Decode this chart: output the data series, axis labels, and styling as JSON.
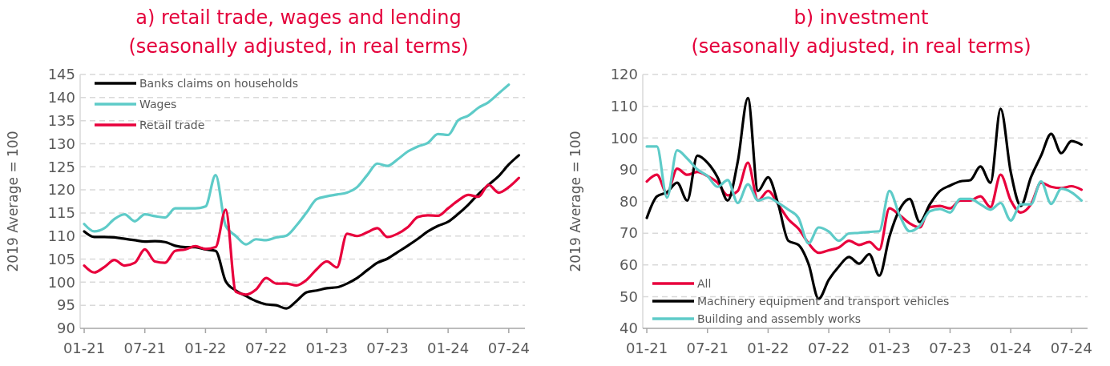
{
  "chart_data": [
    {
      "type": "line",
      "title": "a) retail trade, wages and lending",
      "subtitle": "(seasonally adjusted, in real terms)",
      "ylabel": "2019 Average = 100",
      "categories": [
        "01-21",
        null,
        null,
        null,
        null,
        null,
        "07-21",
        null,
        null,
        null,
        null,
        null,
        "01-22",
        null,
        null,
        null,
        null,
        null,
        "07-22",
        null,
        null,
        null,
        null,
        null,
        "01-23",
        null,
        null,
        null,
        null,
        null,
        "07-23",
        null,
        null,
        null,
        null,
        null,
        "01-24",
        null,
        null,
        null,
        null,
        null,
        "07-24",
        null
      ],
      "ylim": [
        90,
        145
      ],
      "yticks": [
        90,
        95,
        100,
        105,
        110,
        115,
        120,
        125,
        130,
        135,
        140,
        145
      ],
      "grid": "y",
      "legend": "top left",
      "line_style": "solid",
      "marker": "none",
      "series": [
        {
          "name": "Banks claims on households",
          "color": "#000000",
          "values": [
            111.0,
            109.8,
            109.8,
            109.7,
            109.4,
            109.1,
            108.8,
            108.9,
            108.7,
            107.9,
            107.6,
            107.6,
            107.1,
            106.8,
            100.2,
            98.2,
            97.0,
            95.9,
            95.2,
            95.0,
            94.3,
            95.9,
            97.8,
            98.2,
            98.7,
            98.9,
            99.7,
            100.9,
            102.6,
            104.2,
            105.1,
            106.5,
            107.9,
            109.4,
            111.0,
            112.2,
            113.1,
            114.8,
            116.8,
            119.1,
            121.1,
            123.0,
            125.5,
            127.5
          ]
        },
        {
          "name": "Wages",
          "color": "#5ecbc8",
          "values": [
            112.6,
            111.0,
            111.7,
            113.7,
            114.7,
            113.2,
            114.7,
            114.3,
            114.0,
            116.0,
            116.0,
            116.0,
            116.4,
            123.2,
            112.2,
            110.0,
            108.2,
            109.3,
            109.1,
            109.7,
            110.1,
            112.3,
            115.1,
            118.0,
            118.6,
            119.0,
            119.4,
            120.6,
            123.2,
            125.7,
            125.2,
            126.6,
            128.3,
            129.4,
            130.2,
            132.1,
            131.9,
            135.1,
            136.1,
            137.8,
            139.0,
            140.9,
            142.8,
            null
          ]
        },
        {
          "name": "Retail trade",
          "color": "#e8003c",
          "values": [
            103.6,
            102.1,
            103.3,
            104.8,
            103.6,
            104.2,
            107.1,
            104.5,
            104.2,
            106.8,
            107.1,
            107.8,
            107.2,
            107.6,
            115.7,
            97.9,
            97.3,
            98.4,
            100.9,
            99.7,
            99.7,
            99.3,
            100.5,
            102.8,
            104.5,
            103.2,
            110.5,
            110.0,
            110.8,
            111.7,
            109.8,
            110.5,
            111.9,
            114.1,
            114.5,
            114.4,
            116.0,
            117.7,
            118.9,
            118.5,
            121.1,
            119.4,
            120.6,
            122.6
          ]
        }
      ]
    },
    {
      "type": "line",
      "title": "b) investment",
      "subtitle": "(seasonally adjusted, in real terms)",
      "ylabel": "2019 Average = 100",
      "categories": [
        "01-21",
        null,
        null,
        null,
        null,
        null,
        "07-21",
        null,
        null,
        null,
        null,
        null,
        "01-22",
        null,
        null,
        null,
        null,
        null,
        "07-22",
        null,
        null,
        null,
        null,
        null,
        "01-23",
        null,
        null,
        null,
        null,
        null,
        "07-23",
        null,
        null,
        null,
        null,
        null,
        "01-24",
        null,
        null,
        null,
        null,
        null,
        "07-24",
        null
      ],
      "ylim": [
        40,
        120
      ],
      "yticks": [
        40,
        50,
        60,
        70,
        80,
        90,
        100,
        110,
        120
      ],
      "grid": "y",
      "legend": "bottom left",
      "line_style": "solid",
      "marker": "none",
      "series": [
        {
          "name": "All",
          "color": "#e8003c",
          "values": [
            86.3,
            88.4,
            82.5,
            90.3,
            88.4,
            89.3,
            88.0,
            85.9,
            81.9,
            83.3,
            92.2,
            80.3,
            83.3,
            79.1,
            74.4,
            71.4,
            66.8,
            63.8,
            64.6,
            65.5,
            67.6,
            66.3,
            67.2,
            64.8,
            77.8,
            75.7,
            73.1,
            71.8,
            78.2,
            78.6,
            77.8,
            80.3,
            80.3,
            81.6,
            78.2,
            88.4,
            80.3,
            76.5,
            79.1,
            85.9,
            84.6,
            84.2,
            84.8,
            83.7
          ]
        },
        {
          "name": "Machinery equipment and transport vehicles",
          "color": "#000000",
          "values": [
            74.8,
            81.6,
            82.9,
            85.9,
            80.3,
            94.4,
            92.2,
            87.6,
            80.3,
            92.6,
            112.6,
            83.3,
            87.6,
            79.1,
            67.6,
            66.3,
            60.3,
            49.3,
            55.3,
            59.5,
            62.5,
            60.4,
            63.4,
            56.6,
            68.9,
            77.4,
            80.8,
            73.5,
            79.1,
            83.3,
            85.0,
            86.3,
            86.7,
            91.0,
            85.9,
            109.2,
            89.3,
            78.6,
            87.6,
            94.4,
            101.3,
            95.2,
            99.0,
            97.9
          ]
        },
        {
          "name": "Building and assembly works",
          "color": "#5ecbc8",
          "values": [
            97.3,
            97.3,
            81.2,
            96.1,
            93.5,
            90.1,
            88.0,
            84.6,
            86.7,
            79.5,
            85.4,
            80.3,
            81.2,
            79.5,
            77.4,
            74.8,
            66.8,
            71.8,
            70.5,
            67.6,
            69.9,
            70.1,
            70.4,
            70.6,
            83.3,
            75.7,
            70.6,
            72.3,
            76.9,
            77.6,
            76.5,
            80.8,
            80.8,
            79.1,
            77.4,
            79.5,
            74.0,
            79.1,
            79.1,
            86.3,
            79.2,
            84.0,
            82.9,
            80.3
          ]
        }
      ]
    }
  ]
}
